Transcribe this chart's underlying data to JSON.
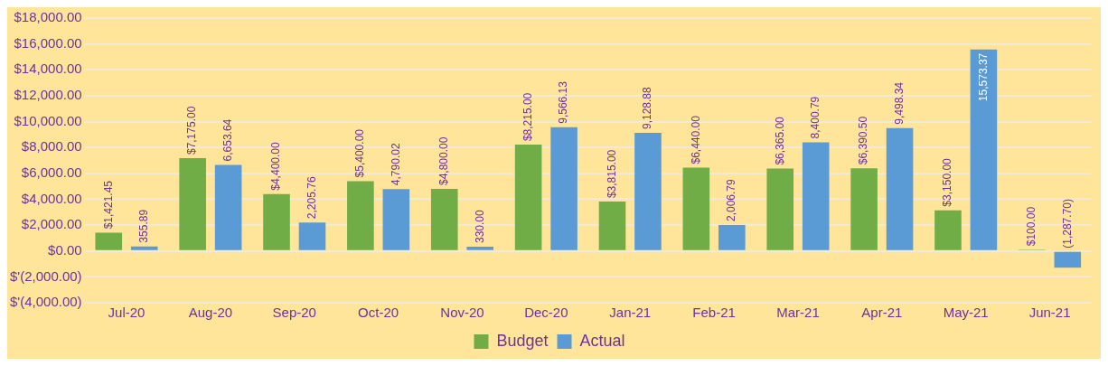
{
  "chart_data": {
    "type": "bar",
    "categories": [
      "Jul-20",
      "Aug-20",
      "Sep-20",
      "Oct-20",
      "Nov-20",
      "Dec-20",
      "Jan-21",
      "Feb-21",
      "Mar-21",
      "Apr-21",
      "May-21",
      "Jun-21"
    ],
    "series": [
      {
        "name": "Budget",
        "color": "#70ad47",
        "values": [
          1421.45,
          7175,
          4400,
          5400,
          4800,
          8215,
          3815,
          6440,
          6365,
          6390.5,
          3150,
          100
        ],
        "value_labels": [
          "$1,421.45",
          "$7,175.00",
          "$4,400.00",
          "$5,400.00",
          "$4,800.00",
          "$8,215.00",
          "$3,815.00",
          "$6,440.00",
          "$6,365.00",
          "$6,390.50",
          "$3,150.00",
          "$100.00"
        ]
      },
      {
        "name": "Actual",
        "color": "#5b9bd5",
        "values": [
          355.89,
          6653.64,
          2205.76,
          4790.02,
          330,
          9566.13,
          9128.88,
          2006.79,
          8400.79,
          9498.34,
          15573.37,
          -1287.7
        ],
        "value_labels": [
          "355.89",
          "6,653.64",
          "2,205.76",
          "4,790.02",
          "330.00",
          "9,566.13",
          "9,128.88",
          "2,006.79",
          "8,400.79",
          "9,498.34",
          "15,573.37",
          "(1,287.70)"
        ]
      }
    ],
    "ylim": [
      -4000,
      18000
    ],
    "yticks": [
      {
        "value": -4000,
        "label": "$'(4,000.00)"
      },
      {
        "value": -2000,
        "label": "$'(2,000.00)"
      },
      {
        "value": 0,
        "label": "$0.00"
      },
      {
        "value": 2000,
        "label": "$2,000.00"
      },
      {
        "value": 4000,
        "label": "$4,000.00"
      },
      {
        "value": 6000,
        "label": "$6,000.00"
      },
      {
        "value": 8000,
        "label": "$8,000.00"
      },
      {
        "value": 10000,
        "label": "$10,000.00"
      },
      {
        "value": 12000,
        "label": "$12,000.00"
      },
      {
        "value": 14000,
        "label": "$14,000.00"
      },
      {
        "value": 16000,
        "label": "$16,000.00"
      },
      {
        "value": 18000,
        "label": "$18,000.00"
      }
    ],
    "grid": "y",
    "legend": "bottom"
  }
}
